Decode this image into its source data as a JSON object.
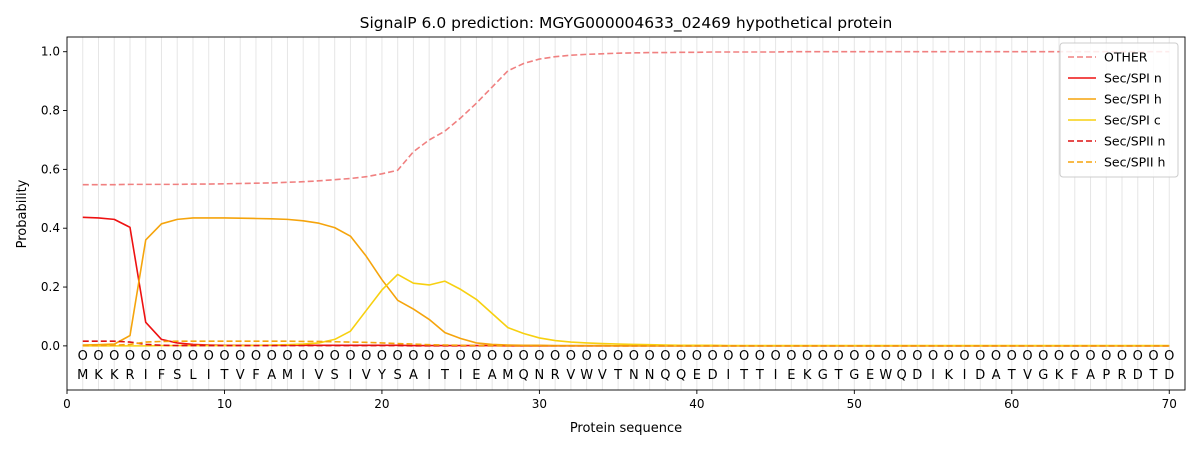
{
  "chart_data": {
    "type": "line",
    "title": "SignalP 6.0 prediction: MGYG000004633_02469 hypothetical protein",
    "xlabel": "Protein sequence",
    "ylabel": "Probability",
    "xlim": [
      0,
      71
    ],
    "ylim": [
      -0.15,
      1.05
    ],
    "xticks": [
      0,
      10,
      20,
      30,
      40,
      50,
      60,
      70
    ],
    "yticks": [
      0.0,
      0.2,
      0.4,
      0.6,
      0.8,
      1.0
    ],
    "xtick_labels": [
      "0",
      "10",
      "20",
      "30",
      "40",
      "50",
      "60",
      "70"
    ],
    "ytick_labels": [
      "0.0",
      "0.2",
      "0.4",
      "0.6",
      "0.8",
      "1.0"
    ],
    "grid": "vertical lines at each residue",
    "legend_position": "top-right",
    "sequence": [
      "M",
      "K",
      "K",
      "R",
      "I",
      "F",
      "S",
      "L",
      "I",
      "T",
      "V",
      "F",
      "A",
      "M",
      "I",
      "V",
      "S",
      "I",
      "V",
      "Y",
      "S",
      "A",
      "I",
      "T",
      "I",
      "E",
      "A",
      "M",
      "Q",
      "N",
      "R",
      "V",
      "W",
      "V",
      "T",
      "N",
      "N",
      "Q",
      "Q",
      "E",
      "D",
      "I",
      "T",
      "T",
      "I",
      "E",
      "K",
      "G",
      "T",
      "G",
      "E",
      "W",
      "Q",
      "D",
      "I",
      "K",
      "I",
      "D",
      "A",
      "T",
      "V",
      "G",
      "K",
      "F",
      "A",
      "P",
      "R",
      "D",
      "T",
      "D"
    ],
    "region_labels": [
      "O",
      "O",
      "O",
      "O",
      "O",
      "O",
      "O",
      "O",
      "O",
      "O",
      "O",
      "O",
      "O",
      "O",
      "O",
      "O",
      "O",
      "O",
      "O",
      "O",
      "O",
      "O",
      "O",
      "O",
      "O",
      "O",
      "O",
      "O",
      "O",
      "O",
      "O",
      "O",
      "O",
      "O",
      "O",
      "O",
      "O",
      "O",
      "O",
      "O",
      "O",
      "O",
      "O",
      "O",
      "O",
      "O",
      "O",
      "O",
      "O",
      "O",
      "O",
      "O",
      "O",
      "O",
      "O",
      "O",
      "O",
      "O",
      "O",
      "O",
      "O",
      "O",
      "O",
      "O",
      "O",
      "O",
      "O",
      "O",
      "O",
      "O"
    ],
    "x": [
      1,
      2,
      3,
      4,
      5,
      6,
      7,
      8,
      9,
      10,
      11,
      12,
      13,
      14,
      15,
      16,
      17,
      18,
      19,
      20,
      21,
      22,
      23,
      24,
      25,
      26,
      27,
      28,
      29,
      30,
      31,
      32,
      33,
      34,
      35,
      36,
      37,
      38,
      39,
      40,
      41,
      42,
      43,
      44,
      45,
      46,
      47,
      48,
      49,
      50,
      51,
      52,
      53,
      54,
      55,
      56,
      57,
      58,
      59,
      60,
      61,
      62,
      63,
      64,
      65,
      66,
      67,
      68,
      69,
      70
    ],
    "series": [
      {
        "name": "OTHER",
        "color": "#f08080",
        "dash": "dashed",
        "values": [
          0.548,
          0.548,
          0.548,
          0.549,
          0.549,
          0.549,
          0.549,
          0.55,
          0.55,
          0.551,
          0.552,
          0.553,
          0.554,
          0.556,
          0.558,
          0.561,
          0.565,
          0.569,
          0.575,
          0.585,
          0.597,
          0.66,
          0.7,
          0.73,
          0.775,
          0.825,
          0.88,
          0.935,
          0.96,
          0.975,
          0.983,
          0.988,
          0.991,
          0.993,
          0.995,
          0.996,
          0.997,
          0.997,
          0.998,
          0.998,
          0.999,
          0.999,
          0.999,
          0.999,
          0.999,
          1.0,
          1.0,
          1.0,
          1.0,
          1.0,
          1.0,
          1.0,
          1.0,
          1.0,
          1.0,
          1.0,
          1.0,
          1.0,
          1.0,
          1.0,
          1.0,
          1.0,
          1.0,
          1.0,
          1.0,
          1.0,
          1.0,
          1.0,
          1.0,
          1.0
        ]
      },
      {
        "name": "Sec/SPI n",
        "color": "#ee1111",
        "dash": "solid",
        "values": [
          0.437,
          0.435,
          0.43,
          0.403,
          0.08,
          0.022,
          0.01,
          0.005,
          0.003,
          0.002,
          0.002,
          0.002,
          0.002,
          0.002,
          0.002,
          0.002,
          0.002,
          0.002,
          0.002,
          0.002,
          0.002,
          0.001,
          0.001,
          0.001,
          0.001,
          0.001,
          0.001,
          0,
          0,
          0,
          0,
          0,
          0,
          0,
          0,
          0,
          0,
          0,
          0,
          0,
          0,
          0,
          0,
          0,
          0,
          0,
          0,
          0,
          0,
          0,
          0,
          0,
          0,
          0,
          0,
          0,
          0,
          0,
          0,
          0,
          0,
          0,
          0,
          0,
          0,
          0,
          0,
          0,
          0,
          0
        ]
      },
      {
        "name": "Sec/SPI h",
        "color": "#f5a40c",
        "dash": "solid",
        "values": [
          0.003,
          0.004,
          0.006,
          0.035,
          0.36,
          0.415,
          0.43,
          0.435,
          0.435,
          0.435,
          0.434,
          0.433,
          0.432,
          0.43,
          0.425,
          0.417,
          0.402,
          0.373,
          0.305,
          0.225,
          0.155,
          0.125,
          0.09,
          0.045,
          0.025,
          0.01,
          0.005,
          0.003,
          0.002,
          0.002,
          0.001,
          0.001,
          0.001,
          0.001,
          0,
          0,
          0,
          0,
          0,
          0,
          0,
          0,
          0,
          0,
          0,
          0,
          0,
          0,
          0,
          0,
          0,
          0,
          0,
          0,
          0,
          0,
          0,
          0,
          0,
          0,
          0,
          0,
          0,
          0,
          0,
          0,
          0,
          0,
          0,
          0
        ]
      },
      {
        "name": "Sec/SPI c",
        "color": "#f7d010",
        "dash": "solid",
        "values": [
          0,
          0,
          0,
          0,
          0,
          0.001,
          0.001,
          0.001,
          0.001,
          0.001,
          0.001,
          0.002,
          0.003,
          0.004,
          0.006,
          0.01,
          0.022,
          0.05,
          0.12,
          0.19,
          0.243,
          0.213,
          0.207,
          0.22,
          0.192,
          0.158,
          0.11,
          0.062,
          0.042,
          0.027,
          0.018,
          0.013,
          0.01,
          0.008,
          0.006,
          0.005,
          0.004,
          0.003,
          0.002,
          0.002,
          0.002,
          0.001,
          0.001,
          0.001,
          0.001,
          0.001,
          0.001,
          0.001,
          0.001,
          0.001,
          0.001,
          0.001,
          0.001,
          0.001,
          0.001,
          0.001,
          0.001,
          0.001,
          0.001,
          0.001,
          0.001,
          0.001,
          0.001,
          0.001,
          0.001,
          0.001,
          0.001,
          0.001,
          0.001,
          0.001
        ]
      },
      {
        "name": "Sec/SPII n",
        "color": "#dd1111",
        "dash": "dashed",
        "values": [
          0.016,
          0.016,
          0.016,
          0.013,
          0.005,
          0.002,
          0.001,
          0.001,
          0.001,
          0.001,
          0.001,
          0.001,
          0.001,
          0.001,
          0.001,
          0.001,
          0.001,
          0.001,
          0.001,
          0.001,
          0.001,
          0,
          0,
          0,
          0,
          0,
          0,
          0,
          0,
          0,
          0,
          0,
          0,
          0,
          0,
          0,
          0,
          0,
          0,
          0,
          0,
          0,
          0,
          0,
          0,
          0,
          0,
          0,
          0,
          0,
          0,
          0,
          0,
          0,
          0,
          0,
          0,
          0,
          0,
          0,
          0,
          0,
          0,
          0,
          0,
          0,
          0,
          0,
          0,
          0
        ]
      },
      {
        "name": "Sec/SPII h",
        "color": "#f5a40c",
        "dash": "dashed",
        "values": [
          0.001,
          0.001,
          0.002,
          0.005,
          0.013,
          0.015,
          0.016,
          0.016,
          0.016,
          0.016,
          0.016,
          0.016,
          0.016,
          0.016,
          0.015,
          0.015,
          0.014,
          0.013,
          0.012,
          0.01,
          0.008,
          0.006,
          0.004,
          0.003,
          0.002,
          0.001,
          0.001,
          0,
          0,
          0,
          0,
          0,
          0,
          0,
          0,
          0,
          0,
          0,
          0,
          0,
          0,
          0,
          0,
          0,
          0,
          0,
          0,
          0,
          0,
          0,
          0,
          0,
          0,
          0,
          0,
          0,
          0,
          0,
          0,
          0,
          0,
          0,
          0,
          0,
          0,
          0,
          0,
          0,
          0,
          0
        ]
      }
    ]
  }
}
